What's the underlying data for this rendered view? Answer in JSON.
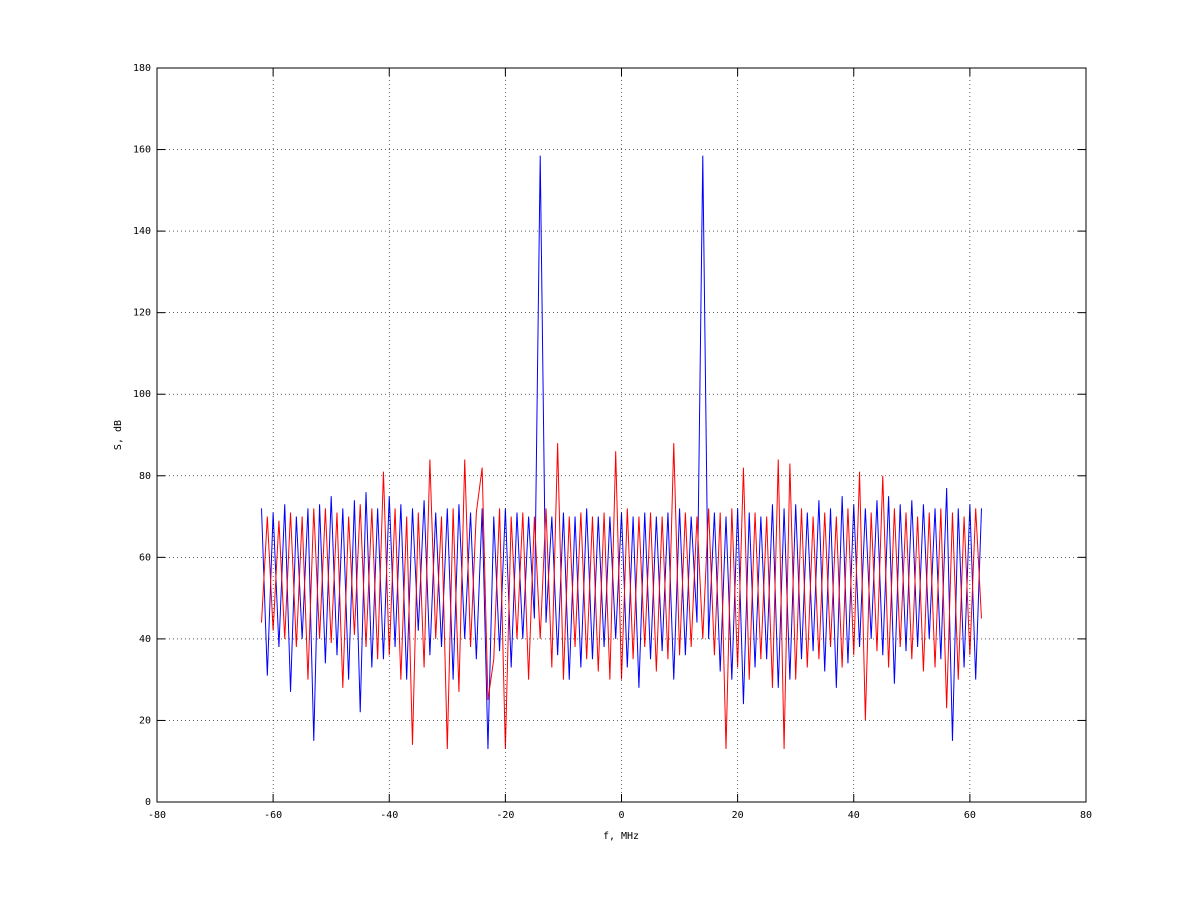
{
  "chart_data": {
    "type": "line",
    "xlabel": "f, MHz",
    "ylabel": "S, dB",
    "xlim": [
      -80,
      80
    ],
    "xticks": [
      -80,
      -60,
      -40,
      -20,
      0,
      20,
      40,
      60,
      80
    ],
    "ylim": [
      0,
      180
    ],
    "yticks": [
      0,
      20,
      40,
      60,
      80,
      100,
      120,
      140,
      160,
      180
    ],
    "grid": true,
    "x": [
      -62,
      -61,
      -60,
      -59,
      -58,
      -57,
      -56,
      -55,
      -54,
      -53,
      -52,
      -51,
      -50,
      -49,
      -48,
      -47,
      -46,
      -45,
      -44,
      -43,
      -42,
      -41,
      -40,
      -39,
      -38,
      -37,
      -36,
      -35,
      -34,
      -33,
      -32,
      -31,
      -30,
      -29,
      -28,
      -27,
      -26,
      -25,
      -24,
      -23,
      -22,
      -21,
      -20,
      -19,
      -18,
      -17,
      -16,
      -15,
      -14,
      -13,
      -12,
      -11,
      -10,
      -9,
      -8,
      -7,
      -6,
      -5,
      -4,
      -3,
      -2,
      -1,
      0,
      1,
      2,
      3,
      4,
      5,
      6,
      7,
      8,
      9,
      10,
      11,
      12,
      13,
      14,
      15,
      16,
      17,
      18,
      19,
      20,
      21,
      22,
      23,
      24,
      25,
      26,
      27,
      28,
      29,
      30,
      31,
      32,
      33,
      34,
      35,
      36,
      37,
      38,
      39,
      40,
      41,
      42,
      43,
      44,
      45,
      46,
      47,
      48,
      49,
      50,
      51,
      52,
      53,
      54,
      55,
      56,
      57,
      58,
      59,
      60,
      61,
      62
    ],
    "series": [
      {
        "color": "#0000ff",
        "values": [
          72,
          31,
          71,
          38,
          73,
          27,
          70,
          40,
          72,
          15,
          73,
          34,
          75,
          36,
          72,
          30,
          74,
          22,
          76,
          33,
          72,
          35,
          75,
          38,
          73,
          30,
          72,
          42,
          74,
          36,
          71,
          38,
          72,
          30,
          73,
          40,
          71,
          35,
          72,
          13,
          70,
          37,
          72,
          33,
          71,
          40,
          70,
          45,
          158.5,
          44,
          70,
          36,
          71,
          30,
          70,
          33,
          72,
          35,
          70,
          38,
          70,
          40,
          71,
          33,
          70,
          28,
          71,
          35,
          70,
          37,
          71,
          30,
          72,
          36,
          70,
          44,
          158.5,
          40,
          71,
          32,
          70,
          30,
          72,
          24,
          71,
          33,
          70,
          35,
          73,
          28,
          72,
          30,
          73,
          35,
          71,
          37,
          74,
          32,
          72,
          28,
          75,
          34,
          73,
          38,
          72,
          40,
          74,
          36,
          75,
          29,
          73,
          37,
          74,
          38,
          73,
          40,
          72,
          35,
          77,
          15,
          72,
          33,
          73,
          30,
          72
        ]
      },
      {
        "color": "#ff0000",
        "values": [
          44,
          70,
          42,
          69,
          40,
          71,
          38,
          70,
          30,
          72,
          40,
          72,
          39,
          71,
          28,
          70,
          41,
          73,
          38,
          72,
          35,
          81,
          36,
          72,
          30,
          70,
          14,
          71,
          33,
          84,
          40,
          70,
          13,
          72,
          27,
          84,
          38,
          71,
          82,
          25,
          35,
          72,
          13,
          70,
          40,
          71,
          30,
          70,
          40,
          72,
          33,
          88,
          30,
          70,
          38,
          71,
          35,
          70,
          32,
          71,
          30,
          86,
          30,
          72,
          35,
          70,
          38,
          71,
          32,
          70,
          35,
          88,
          36,
          71,
          38,
          70,
          40,
          72,
          36,
          71,
          13,
          72,
          33,
          82,
          30,
          71,
          35,
          70,
          28,
          84,
          13,
          83,
          30,
          72,
          33,
          70,
          35,
          71,
          38,
          70,
          33,
          72,
          36,
          81,
          20,
          71,
          37,
          80,
          33,
          72,
          38,
          71,
          35,
          70,
          32,
          71,
          33,
          72,
          23,
          71,
          30,
          70,
          36,
          72,
          45
        ]
      }
    ]
  }
}
